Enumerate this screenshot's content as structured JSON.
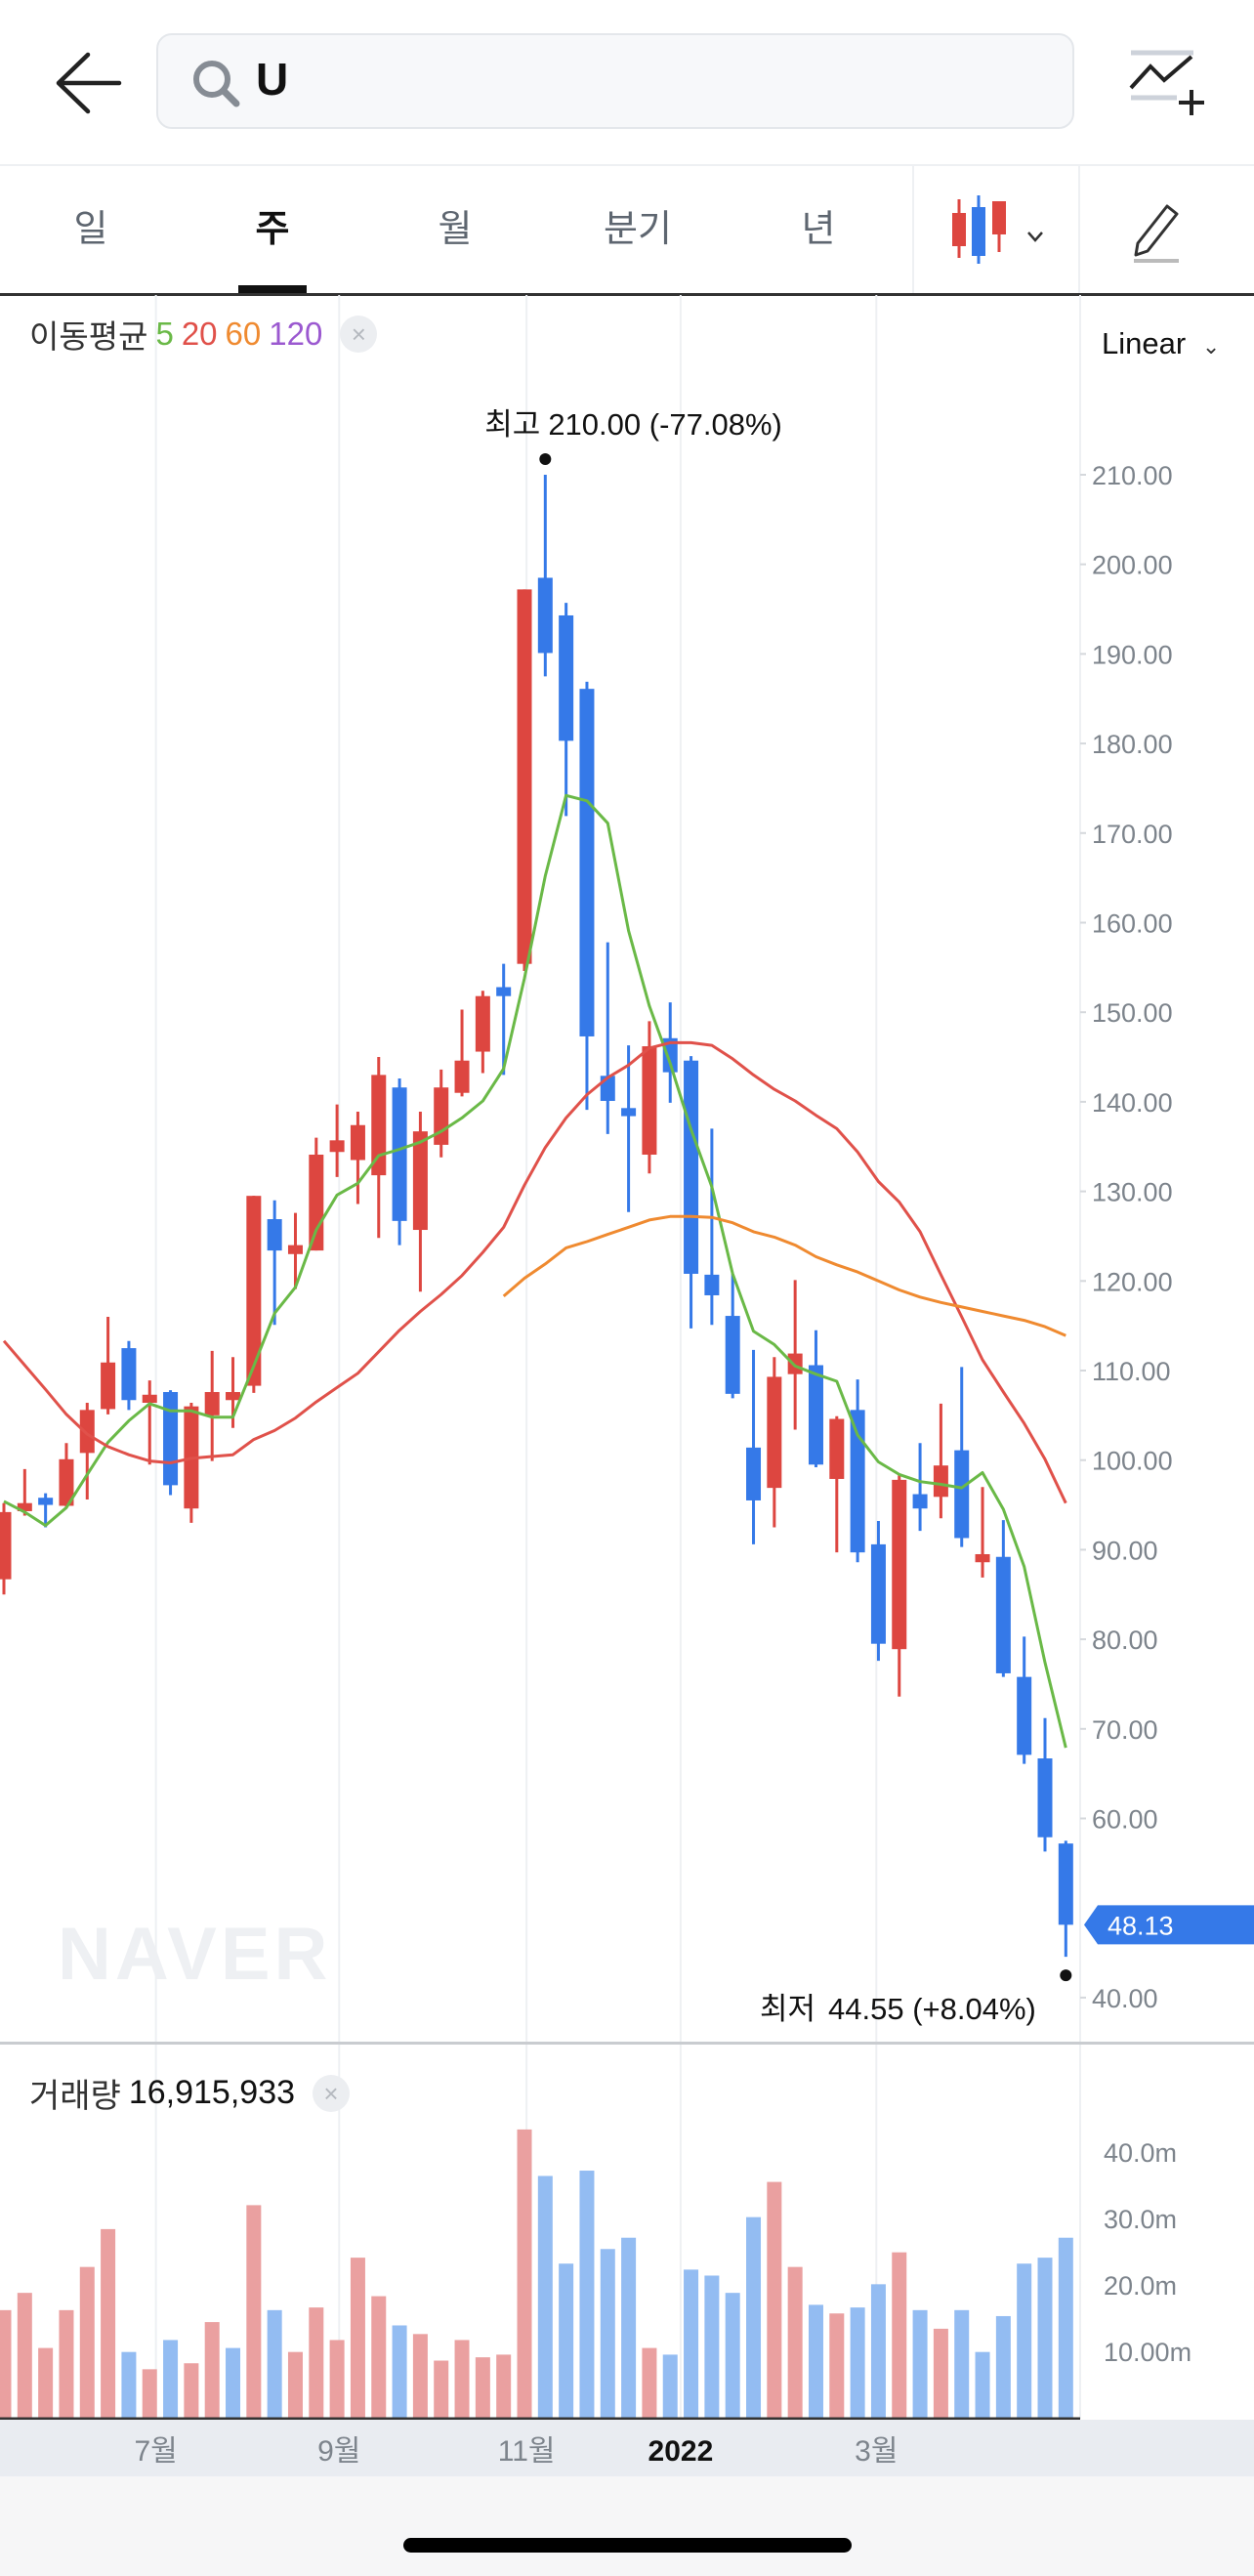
{
  "header": {
    "search_value": "U",
    "icons": {
      "back": "arrow-left-icon",
      "search": "search-icon",
      "add_indicator": "chart-line-plus-icon"
    }
  },
  "tabs": [
    {
      "label": "일",
      "active": false
    },
    {
      "label": "주",
      "active": true
    },
    {
      "label": "월",
      "active": false
    },
    {
      "label": "분기",
      "active": false
    },
    {
      "label": "년",
      "active": false
    }
  ],
  "toolbar": {
    "chart_type_icon": "candlestick-icon",
    "draw_icon": "pencil-icon"
  },
  "ma_legend": {
    "label": "이동평균",
    "periods": [
      {
        "label": "5",
        "color": "#6ab947"
      },
      {
        "label": "20",
        "color": "#e0514a"
      },
      {
        "label": "60",
        "color": "#ef8a30"
      },
      {
        "label": "120",
        "color": "#9b59d0"
      }
    ]
  },
  "scale_select": "Linear",
  "watermark": "NAVER",
  "volume_legend": {
    "label": "거래량",
    "value": "16,915,933"
  },
  "chart_data": {
    "type": "candlestick",
    "colors": {
      "up": "#dd4640",
      "down": "#3579e8",
      "vol_up": "#eaa0a0",
      "vol_down": "#93bcf2",
      "last_price": "#3579e8"
    },
    "x_labels": [
      {
        "label": "7월",
        "index": 7.3,
        "bold": false
      },
      {
        "label": "9월",
        "index": 16.1,
        "bold": false
      },
      {
        "label": "11월",
        "index": 25.1,
        "bold": false
      },
      {
        "label": "2022",
        "index": 32.5,
        "bold": true
      },
      {
        "label": "3월",
        "index": 41.9,
        "bold": false
      }
    ],
    "price_axis": {
      "min": 40,
      "max": 210,
      "ticks": [
        "210.00",
        "200.00",
        "190.00",
        "180.00",
        "170.00",
        "160.00",
        "150.00",
        "140.00",
        "130.00",
        "120.00",
        "110.00",
        "100.00",
        "90.00",
        "80.00",
        "70.00",
        "60.00",
        "40.00"
      ]
    },
    "open": [
      86.7,
      94.3,
      95.8,
      94.9,
      100.8,
      105.7,
      112.5,
      106.4,
      107.6,
      94.6,
      105.0,
      106.7,
      108.3,
      126.9,
      123.0,
      123.4,
      134.4,
      133.5,
      131.8,
      141.6,
      125.7,
      135.2,
      141.0,
      145.6,
      152.8,
      155.4,
      198.5,
      194.3,
      186.1,
      142.9,
      139.3,
      134.1,
      147.1,
      144.6,
      120.7,
      116.1,
      101.4,
      96.9,
      109.6,
      110.6,
      97.9,
      105.6,
      90.6,
      78.9,
      96.2,
      95.9,
      101.1,
      88.6,
      89.2,
      75.8,
      66.7,
      57.2
    ],
    "high": [
      95.2,
      99.0,
      96.3,
      101.9,
      106.4,
      116.0,
      113.3,
      108.9,
      107.8,
      106.4,
      112.2,
      111.5,
      129.5,
      129.0,
      127.6,
      136.0,
      139.7,
      138.9,
      145.0,
      142.6,
      138.9,
      143.6,
      150.3,
      152.4,
      155.4,
      197.2,
      210.0,
      195.7,
      186.9,
      157.8,
      146.3,
      149.0,
      151.1,
      145.1,
      137.0,
      120.8,
      112.3,
      111.5,
      120.1,
      114.5,
      104.9,
      109.0,
      93.2,
      98.3,
      101.9,
      106.3,
      110.4,
      97.0,
      93.3,
      80.3,
      71.2,
      57.5
    ],
    "low": [
      85.0,
      93.8,
      92.5,
      94.8,
      95.6,
      105.1,
      105.6,
      99.5,
      96.1,
      93.0,
      99.9,
      103.6,
      107.5,
      115.1,
      119.1,
      123.4,
      131.6,
      128.6,
      124.8,
      124.0,
      118.8,
      133.8,
      140.6,
      143.2,
      143.0,
      154.6,
      187.5,
      171.9,
      139.1,
      136.4,
      127.7,
      132.0,
      139.9,
      114.7,
      115.1,
      106.9,
      90.6,
      92.5,
      103.4,
      99.2,
      89.7,
      88.6,
      77.6,
      73.6,
      92.1,
      93.5,
      90.3,
      86.9,
      75.8,
      66.1,
      56.3,
      44.55
    ],
    "close": [
      94.2,
      95.2,
      95.0,
      100.1,
      105.6,
      110.9,
      106.7,
      107.3,
      97.2,
      106.0,
      107.6,
      107.6,
      129.5,
      123.4,
      124.0,
      134.1,
      135.7,
      137.4,
      143.0,
      126.7,
      136.7,
      141.6,
      144.6,
      151.8,
      151.8,
      197.2,
      190.1,
      180.3,
      147.3,
      140.1,
      138.4,
      146.2,
      143.3,
      120.8,
      118.4,
      107.4,
      95.5,
      109.3,
      111.9,
      99.5,
      104.6,
      89.7,
      79.5,
      97.8,
      94.6,
      99.4,
      91.3,
      89.5,
      76.2,
      67.1,
      57.9,
      48.13
    ],
    "ma5": [
      95.4,
      94.2,
      92.7,
      94.7,
      98.4,
      102.0,
      104.4,
      106.3,
      105.5,
      105.5,
      104.8,
      104.8,
      110.5,
      116.4,
      119.3,
      125.7,
      129.6,
      130.9,
      134.0,
      134.7,
      135.5,
      136.7,
      138.2,
      140.1,
      143.7,
      153.8,
      165.2,
      174.2,
      173.6,
      171.1,
      159.1,
      150.7,
      144.3,
      136.9,
      130.5,
      120.8,
      114.4,
      112.9,
      110.5,
      109.6,
      108.8,
      102.8,
      99.8,
      98.4,
      97.6,
      97.3,
      96.9,
      98.6,
      94.5,
      88.1,
      77.4,
      67.9
    ],
    "ma20": [
      113.3,
      110.6,
      107.9,
      105.1,
      102.9,
      101.5,
      100.6,
      99.9,
      99.7,
      100.2,
      100.4,
      100.6,
      102.3,
      103.3,
      104.7,
      106.5,
      108.1,
      109.7,
      112.1,
      114.5,
      116.6,
      118.5,
      120.6,
      123.2,
      126.0,
      130.7,
      134.9,
      138.2,
      140.8,
      142.7,
      144.1,
      146.0,
      146.6,
      146.6,
      146.3,
      144.8,
      143.0,
      141.4,
      140.1,
      138.5,
      137.0,
      134.4,
      131.1,
      128.8,
      125.5,
      120.7,
      116.0,
      111.2,
      107.6,
      104.1,
      100.1,
      95.2
    ],
    "ma60": [
      null,
      null,
      null,
      null,
      null,
      null,
      null,
      null,
      null,
      null,
      null,
      null,
      null,
      null,
      null,
      null,
      null,
      null,
      null,
      null,
      null,
      null,
      null,
      null,
      118.3,
      120.3,
      121.9,
      123.7,
      124.4,
      125.2,
      126.0,
      126.8,
      127.2,
      127.2,
      127.1,
      126.5,
      125.5,
      124.9,
      124.0,
      122.7,
      121.8,
      121.0,
      120.0,
      119.0,
      118.2,
      117.6,
      117.1,
      116.6,
      116.1,
      115.6,
      114.9,
      113.9
    ],
    "high_marker": {
      "label": "최고",
      "value": "210.00 (-77.08%)",
      "index": 26,
      "price": 210.0
    },
    "low_marker": {
      "label": "최저",
      "value": "44.55 (+8.04%)",
      "index": 51,
      "price": 44.55
    },
    "last_price": {
      "label": "48.13",
      "price": 48.13
    },
    "volume_axis": {
      "unit": "m",
      "ticks": [
        {
          "label": "40.0m",
          "value": 40
        },
        {
          "label": "30.0m",
          "value": 30
        },
        {
          "label": "20.0m",
          "value": 20
        },
        {
          "label": "10.00m",
          "value": 10
        }
      ]
    },
    "volume_millions": [
      16.2,
      18.8,
      10.5,
      16.2,
      22.7,
      28.4,
      9.9,
      7.3,
      11.7,
      8.2,
      14.4,
      10.5,
      32.0,
      16.2,
      9.9,
      16.6,
      11.7,
      24.1,
      18.3,
      13.9,
      12.6,
      8.6,
      11.7,
      9.1,
      9.5,
      43.4,
      36.4,
      23.2,
      37.2,
      25.4,
      27.1,
      10.5,
      9.5,
      22.3,
      21.4,
      18.8,
      30.2,
      35.5,
      22.7,
      17.0,
      15.7,
      16.6,
      20.1,
      24.9,
      16.2,
      13.4,
      16.2,
      9.9,
      15.3,
      23.2,
      24.1,
      27.1
    ],
    "volume_up": [
      1,
      1,
      1,
      1,
      1,
      1,
      0,
      1,
      0,
      1,
      1,
      0,
      1,
      0,
      1,
      1,
      1,
      1,
      1,
      0,
      1,
      1,
      1,
      1,
      1,
      1,
      0,
      0,
      0,
      0,
      0,
      1,
      0,
      0,
      0,
      0,
      0,
      1,
      1,
      0,
      1,
      0,
      0,
      1,
      0,
      1,
      0,
      0,
      0,
      0,
      0,
      0
    ]
  }
}
